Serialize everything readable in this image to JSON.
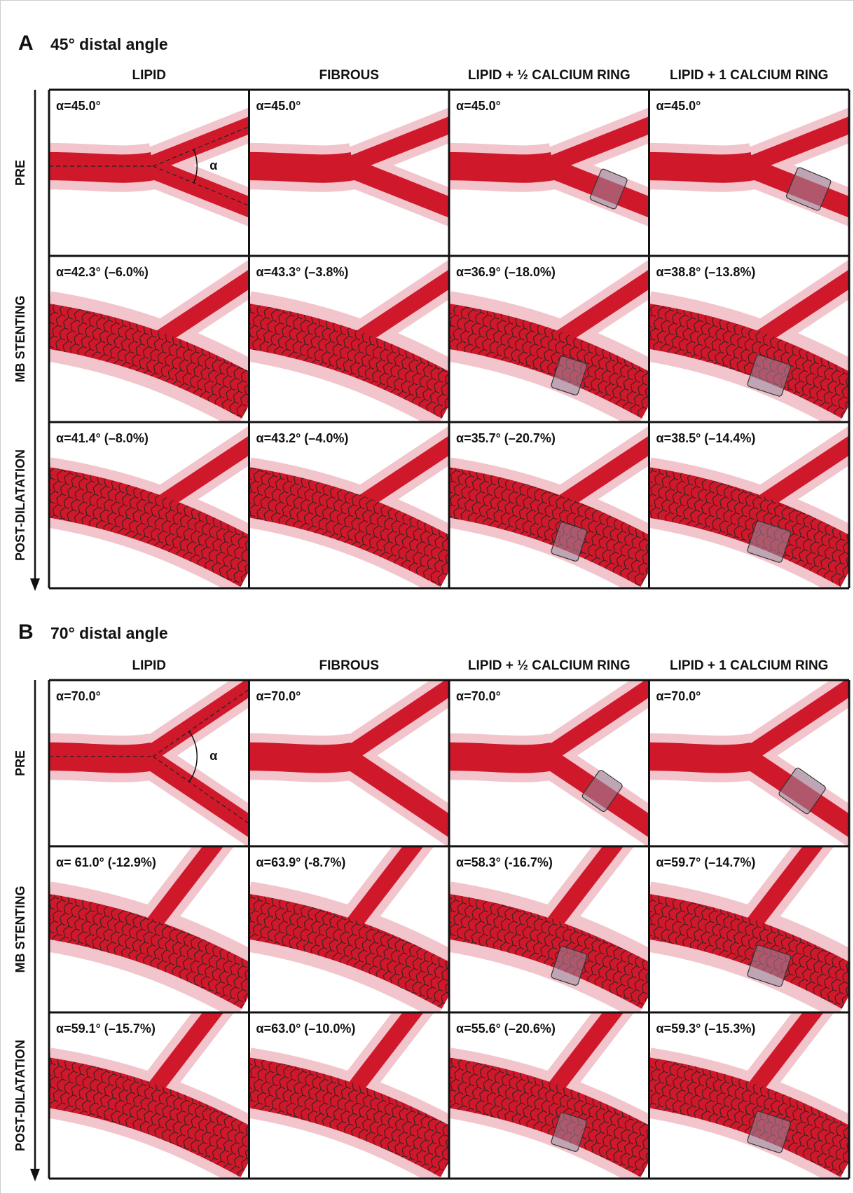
{
  "panels": [
    {
      "label": "A",
      "title": "45° distal angle",
      "columns": [
        "LIPID",
        "FIBROUS",
        "LIPID + ½ CALCIUM RING",
        "LIPID + 1 CALCIUM RING"
      ],
      "rows": [
        "PRE",
        "MB STENTING",
        "POST-DILATATION"
      ],
      "angle_symbol": "α",
      "cells": [
        [
          "α=45.0°",
          "α=45.0°",
          "α=45.0°",
          "α=45.0°"
        ],
        [
          "α=42.3° (–6.0%)",
          "α=43.3° (–3.8%)",
          "α=36.9° (–18.0%)",
          "α=38.8° (–13.8%)"
        ],
        [
          "α=41.4° (–8.0%)",
          "α=43.2° (–4.0%)",
          "α=35.7° (–20.7%)",
          "α=38.5° (–14.4%)"
        ]
      ]
    },
    {
      "label": "B",
      "title": "70° distal angle",
      "columns": [
        "LIPID",
        "FIBROUS",
        "LIPID + ½ CALCIUM RING",
        "LIPID + 1 CALCIUM RING"
      ],
      "rows": [
        "PRE",
        "MB STENTING",
        "POST-DILATATION"
      ],
      "angle_symbol": "α",
      "cells": [
        [
          "α=70.0°",
          "α=70.0°",
          "α=70.0°",
          "α=70.0°"
        ],
        [
          "α= 61.0° (-12.9%)",
          "α=63.9° (-8.7%)",
          "α=58.3° (-16.7%)",
          "α=59.7° (–14.7%)"
        ],
        [
          "α=59.1° (–15.7%)",
          "α=63.0° (–10.0%)",
          "α=55.6° (–20.6%)",
          "α=59.3° (–15.3%)"
        ]
      ]
    }
  ]
}
